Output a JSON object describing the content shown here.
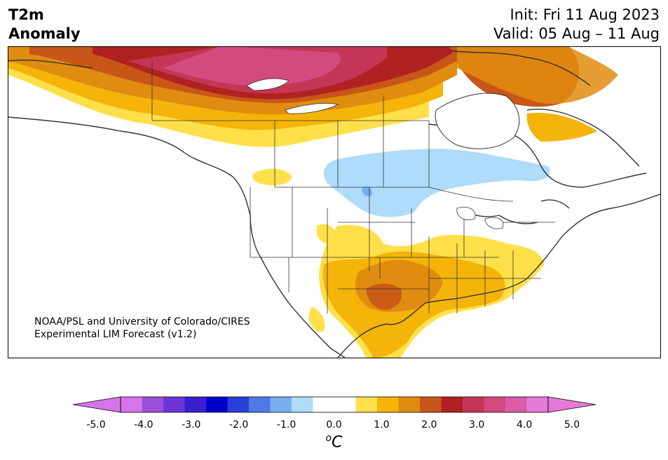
{
  "header": {
    "variable_line1": "T2m",
    "variable_line2": "Anomaly",
    "init": "Init: Fri 11 Aug 2023",
    "valid": "Valid: 05 Aug – 11 Aug"
  },
  "map": {
    "region": "North America",
    "credit_line1": "NOAA/PSL and University of Colorado/CIRES",
    "credit_line2": "Experimental LIM Forecast (v1.2)"
  },
  "colorbar": {
    "units": "oC",
    "units_base": "C",
    "units_sup": "o",
    "ticks": [
      "-5.0",
      "-4.0",
      "-3.0",
      "-2.0",
      "-1.0",
      "0.0",
      "1.0",
      "2.0",
      "3.0",
      "4.0",
      "5.0"
    ],
    "under_color": "#d874ea",
    "over_color": "#e67ad8",
    "bin_colors": [
      "#d874ea",
      "#9b50dc",
      "#6b35d8",
      "#3a1fcc",
      "#0000cd",
      "#2a3fd8",
      "#4f7ae6",
      "#77b0f0",
      "#aedcfa",
      "#ffffff",
      "#ffffff",
      "#ffe04a",
      "#f4b40a",
      "#e08c10",
      "#c85618",
      "#b02222",
      "#c43655",
      "#d24a7e",
      "#dc5ca8",
      "#e67ad8"
    ]
  }
}
